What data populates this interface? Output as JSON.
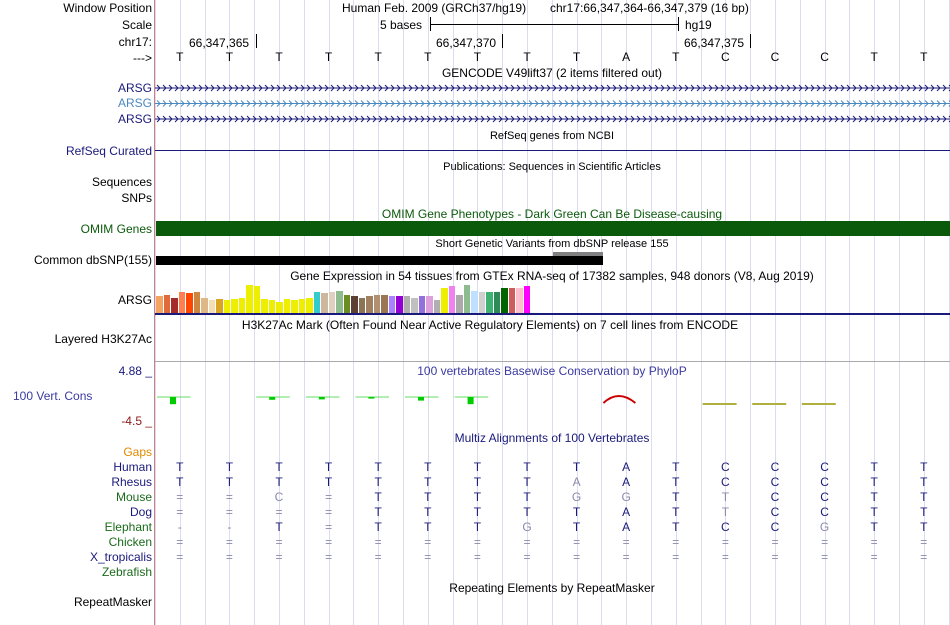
{
  "header": {
    "window_position_label": "Window Position",
    "scale_label": "Scale",
    "chrom_label": "chr17:",
    "strand_label": "--->",
    "assembly_text": "Human Feb. 2009 (GRCh37/hg19)",
    "position_text": "chr17:66,347,364-66,347,379 (16 bp)",
    "scale_text": "5 bases",
    "scale_db": "hg19",
    "ruler": [
      "66,347,365",
      "66,347,370",
      "66,347,375"
    ]
  },
  "sequence": [
    "T",
    "T",
    "T",
    "T",
    "T",
    "T",
    "T",
    "T",
    "T",
    "A",
    "T",
    "C",
    "C",
    "C",
    "T",
    "T"
  ],
  "tracks": {
    "gencode": {
      "title": "GENCODE V49lift37 (2 items filtered out)",
      "items": [
        {
          "label": "ARSG",
          "color": "#1a1a7a"
        },
        {
          "label": "ARSG",
          "color": "#4a88c0"
        },
        {
          "label": "ARSG",
          "color": "#1a1a7a"
        }
      ]
    },
    "refseq": {
      "title": "RefSeq genes from NCBI",
      "label": "RefSeq Curated"
    },
    "publications": {
      "title": "Publications: Sequences in Scientific Articles",
      "label": "Sequences"
    },
    "snps_label": "SNPs",
    "omim": {
      "title": "OMIM Gene Phenotypes - Dark Green Can Be Disease-causing",
      "label": "OMIM Genes",
      "color": "#0b5a0b"
    },
    "dbsnp": {
      "title": "Short Genetic Variants from dbSNP release 155",
      "label": "Common dbSNP(155)"
    },
    "gtex": {
      "title": "Gene Expression in 54 tissues from GTEx RNA-seq of 17382 samples, 948 donors (V8, Aug 2019)",
      "label": "ARSG",
      "bars": [
        {
          "color": "#f4a460",
          "value": 0.6
        },
        {
          "color": "#e06a3a",
          "value": 0.65
        },
        {
          "color": "#a52a2a",
          "value": 0.55
        },
        {
          "color": "#ff7f50",
          "value": 0.75
        },
        {
          "color": "#ff4500",
          "value": 0.7
        },
        {
          "color": "#cd853f",
          "value": 0.75
        },
        {
          "color": "#deb887",
          "value": 0.55
        },
        {
          "color": "#f5deb3",
          "value": 0.45
        },
        {
          "color": "#daa520",
          "value": 0.5
        },
        {
          "color": "#eeee00",
          "value": 0.45
        },
        {
          "color": "#eeee00",
          "value": 0.5
        },
        {
          "color": "#eeee00",
          "value": 0.55
        },
        {
          "color": "#eeee00",
          "value": 1.0
        },
        {
          "color": "#eeee00",
          "value": 0.98
        },
        {
          "color": "#eeee00",
          "value": 0.5
        },
        {
          "color": "#eeee00",
          "value": 0.45
        },
        {
          "color": "#eeee00",
          "value": 0.4
        },
        {
          "color": "#eeee00",
          "value": 0.5
        },
        {
          "color": "#eeee00",
          "value": 0.45
        },
        {
          "color": "#eeee00",
          "value": 0.5
        },
        {
          "color": "#eeee00",
          "value": 0.55
        },
        {
          "color": "#33cccc",
          "value": 0.75
        },
        {
          "color": "#cdb79e",
          "value": 0.7
        },
        {
          "color": "#e0d0c0",
          "value": 0.75
        },
        {
          "color": "#8fbc8f",
          "value": 0.8
        },
        {
          "color": "#6b8e23",
          "value": 0.65
        },
        {
          "color": "#5c4033",
          "value": 0.6
        },
        {
          "color": "#8b7355",
          "value": 0.55
        },
        {
          "color": "#a08060",
          "value": 0.6
        },
        {
          "color": "#b09070",
          "value": 0.65
        },
        {
          "color": "#9b7653",
          "value": 0.65
        },
        {
          "color": "#aa82ff",
          "value": 0.6
        },
        {
          "color": "#9400d3",
          "value": 0.6
        },
        {
          "color": "#b0b0b0",
          "value": 0.6
        },
        {
          "color": "#c0c0c0",
          "value": 0.55
        },
        {
          "color": "#9370db",
          "value": 0.6
        },
        {
          "color": "#dda0dd",
          "value": 0.6
        },
        {
          "color": "#b0b0b0",
          "value": 0.45
        },
        {
          "color": "#eeee00",
          "value": 0.9
        },
        {
          "color": "#ee82ee",
          "value": 0.95
        },
        {
          "color": "#aaaaaa",
          "value": 0.65
        },
        {
          "color": "#8fbc8f",
          "value": 1.0
        },
        {
          "color": "#c0e0ff",
          "value": 0.8
        },
        {
          "color": "#d0d0d0",
          "value": 0.75
        },
        {
          "color": "#3cb371",
          "value": 0.75
        },
        {
          "color": "#2e8b57",
          "value": 0.75
        },
        {
          "color": "#006400",
          "value": 0.9
        },
        {
          "color": "#cd5c5c",
          "value": 0.9
        },
        {
          "color": "#ffc0cb",
          "value": 0.9
        },
        {
          "color": "#ff00ff",
          "value": 0.95
        }
      ]
    },
    "h3k27ac": {
      "title": "H3K27Ac Mark (Often Found Near Active Regulatory Elements) on 7 cell lines from ENCODE",
      "label": "Layered H3K27Ac"
    },
    "phylop": {
      "title": "100 vertebrates Basewise Conservation by PhyloP",
      "label": "100 Vert. Cons",
      "max_label": "4.88 _",
      "min_label": "-4.5 _",
      "scores": [
        0.9,
        0.0,
        0.35,
        0.3,
        0.2,
        0.45,
        0.9,
        0.0,
        0.0,
        -1.5,
        0.0,
        -0.3,
        -0.3,
        -0.3,
        0.0,
        0.0
      ]
    },
    "multiz": {
      "title": "Multiz Alignments of 100 Vertebrates",
      "gaps_label": "Gaps",
      "species": [
        {
          "name": "Human",
          "color": "#1a1a7a",
          "seq": [
            "T",
            "T",
            "T",
            "T",
            "T",
            "T",
            "T",
            "T",
            "T",
            "A",
            "T",
            "C",
            "C",
            "C",
            "T",
            "T"
          ]
        },
        {
          "name": "Rhesus",
          "color": "#1a1a7a",
          "seq": [
            "T",
            "T",
            "T",
            "T",
            "T",
            "T",
            "T",
            "T",
            "A",
            "A",
            "T",
            "C",
            "C",
            "C",
            "T",
            "T"
          ]
        },
        {
          "name": "Mouse",
          "color": "#1a6b1a",
          "seq": [
            "=",
            "=",
            "C",
            "=",
            "T",
            "T",
            "T",
            "T",
            "G",
            "G",
            "T",
            "T",
            "C",
            "C",
            "T",
            "T"
          ]
        },
        {
          "name": "Dog",
          "color": "#1a1a7a",
          "seq": [
            "=",
            "=",
            "=",
            "=",
            "T",
            "T",
            "T",
            "T",
            "T",
            "A",
            "T",
            "T",
            "C",
            "C",
            "T",
            "T"
          ]
        },
        {
          "name": "Elephant",
          "color": "#1a6b1a",
          "seq": [
            "-",
            "-",
            "T",
            "=",
            "T",
            "T",
            "T",
            "G",
            "T",
            "A",
            "T",
            "C",
            "C",
            "G",
            "T",
            "T"
          ]
        },
        {
          "name": "Chicken",
          "color": "#1a6b1a",
          "seq": [
            "=",
            "=",
            "=",
            "=",
            "=",
            "=",
            "=",
            "=",
            "=",
            "=",
            "=",
            "=",
            "=",
            "=",
            "=",
            "="
          ]
        },
        {
          "name": "X_tropicalis",
          "color": "#1a1a7a",
          "seq": [
            "=",
            "=",
            "=",
            "=",
            "=",
            "=",
            "=",
            "=",
            "=",
            "=",
            "=",
            "=",
            "=",
            "=",
            "=",
            "="
          ]
        },
        {
          "name": "Zebrafish",
          "color": "#1a6b1a",
          "seq": [
            "",
            "",
            "",
            "",
            "",
            "",
            "",
            "",
            "",
            "",
            "",
            "",
            "",
            "",
            "",
            ""
          ]
        }
      ]
    },
    "repeatmasker": {
      "title": "Repeating Elements by RepeatMasker",
      "label": "RepeatMasker"
    }
  },
  "colors": {
    "dark_navy": "#1a1a7a",
    "gap_orange": "#e08a00",
    "cons_max": "#1a1a7a",
    "cons_min": "#8b1a1a",
    "cons_pos": "#00cc00",
    "cons_neg": "#cc0000",
    "cons_olive": "#b0b040"
  }
}
